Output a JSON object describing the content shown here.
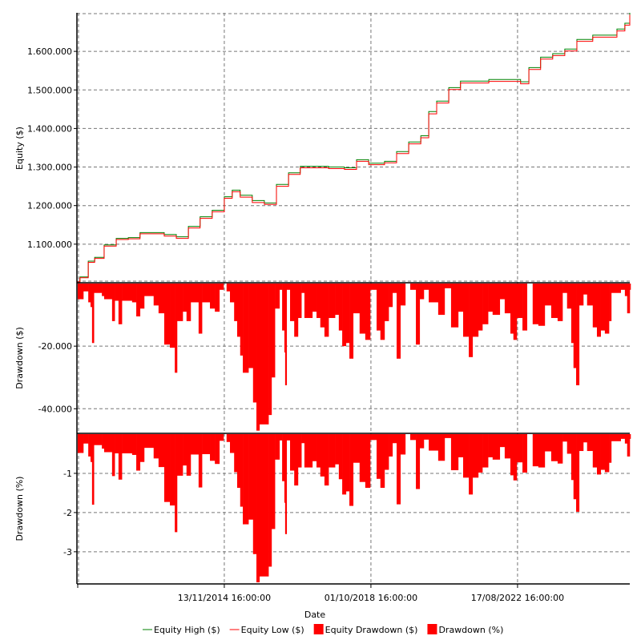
{
  "chart_data": [
    {
      "type": "line",
      "title": "",
      "ylabel": "Equity ($)",
      "xlabel": "Date",
      "ylim": [
        1002000,
        1700000
      ],
      "yticks": [
        1100000,
        1200000,
        1300000,
        1400000,
        1500000,
        1600000
      ],
      "ytick_labels": [
        "1.100.000",
        "1.200.000",
        "1.300.000",
        "1.400.000",
        "1.500.000",
        "1.600.000"
      ],
      "x_unit": "year",
      "series": [
        {
          "name": "Equity High ($)",
          "color": "#008000",
          "x": [
            2010.97,
            2011.05,
            2011.27,
            2011.44,
            2011.69,
            2012.01,
            2012.33,
            2012.64,
            2012.96,
            2013.28,
            2013.6,
            2013.92,
            2014.23,
            2014.55,
            2014.87,
            2015.08,
            2015.29,
            2015.61,
            2015.93,
            2016.25,
            2016.57,
            2016.88,
            2017.2,
            2017.63,
            2018.05,
            2018.37,
            2018.69,
            2019.11,
            2019.43,
            2019.75,
            2020.07,
            2020.28,
            2020.49,
            2020.81,
            2021.12,
            2021.44,
            2021.87,
            2022.29,
            2022.71,
            2022.93,
            2023.24,
            2023.56,
            2023.88,
            2024.2,
            2024.62,
            2025.05,
            2025.26,
            2025.47,
            2025.6
          ],
          "y": [
            1002000,
            1015000,
            1056000,
            1066000,
            1098000,
            1115000,
            1117000,
            1130000,
            1130000,
            1125000,
            1119000,
            1146000,
            1171000,
            1188000,
            1223000,
            1240000,
            1227000,
            1213000,
            1207000,
            1255000,
            1285000,
            1302000,
            1302000,
            1300000,
            1298000,
            1319000,
            1310000,
            1315000,
            1340000,
            1365000,
            1381000,
            1444000,
            1471000,
            1506000,
            1523000,
            1523000,
            1527000,
            1527000,
            1521000,
            1558000,
            1585000,
            1594000,
            1606000,
            1631000,
            1642000,
            1642000,
            1658000,
            1673000,
            1700000
          ]
        },
        {
          "name": "Equity Low ($)",
          "color": "#ff0000",
          "x": [
            2010.97,
            2011.05,
            2011.27,
            2011.44,
            2011.69,
            2012.01,
            2012.33,
            2012.64,
            2012.96,
            2013.28,
            2013.6,
            2013.92,
            2014.23,
            2014.55,
            2014.87,
            2015.08,
            2015.29,
            2015.61,
            2015.93,
            2016.25,
            2016.57,
            2016.88,
            2017.2,
            2017.63,
            2018.05,
            2018.37,
            2018.69,
            2019.11,
            2019.43,
            2019.75,
            2020.07,
            2020.28,
            2020.49,
            2020.81,
            2021.12,
            2021.44,
            2021.87,
            2022.29,
            2022.71,
            2022.93,
            2023.24,
            2023.56,
            2023.88,
            2024.2,
            2024.62,
            2025.05,
            2025.26,
            2025.47,
            2025.6
          ],
          "y": [
            1002000,
            1013000,
            1053000,
            1063000,
            1095000,
            1112000,
            1114000,
            1127000,
            1127000,
            1121000,
            1115000,
            1142000,
            1167000,
            1184000,
            1219000,
            1236000,
            1222000,
            1208000,
            1203000,
            1250000,
            1281000,
            1298000,
            1298000,
            1296000,
            1294000,
            1315000,
            1306000,
            1311000,
            1335000,
            1360000,
            1376000,
            1438000,
            1466000,
            1501000,
            1518000,
            1518000,
            1522000,
            1522000,
            1516000,
            1553000,
            1580000,
            1589000,
            1601000,
            1626000,
            1637000,
            1637000,
            1653000,
            1668000,
            1695000
          ]
        }
      ]
    },
    {
      "type": "bar",
      "ylabel": "Drawdown ($)",
      "ylim": [
        -47600,
        0
      ],
      "yticks": [
        -20000,
        -40000
      ],
      "ytick_labels": [
        "-20.000",
        "-40.000"
      ],
      "series": [
        {
          "name": "Equity Drawdown ($)",
          "color": "#ff0000"
        }
      ]
    },
    {
      "type": "bar",
      "ylabel": "Drawdown (%)",
      "ylim": [
        -3.8,
        0
      ],
      "yticks": [
        -1,
        -2,
        -3
      ],
      "ytick_labels": [
        "-1",
        "-2",
        "-3"
      ],
      "series": [
        {
          "name": "Drawdown (%)",
          "color": "#ff0000"
        }
      ]
    }
  ],
  "drawdown": {
    "x": [
      2010.99,
      2011.14,
      2011.27,
      2011.33,
      2011.37,
      2011.42,
      2011.63,
      2011.69,
      2011.9,
      2011.97,
      2012.07,
      2012.16,
      2012.43,
      2012.54,
      2012.64,
      2012.75,
      2013.0,
      2013.13,
      2013.28,
      2013.43,
      2013.56,
      2013.62,
      2013.77,
      2013.87,
      2013.98,
      2014.19,
      2014.28,
      2014.49,
      2014.62,
      2014.74,
      2014.85,
      2014.93,
      2015.02,
      2015.13,
      2015.21,
      2015.29,
      2015.36,
      2015.51,
      2015.63,
      2015.72,
      2015.8,
      2016.04,
      2016.12,
      2016.21,
      2016.33,
      2016.4,
      2016.46,
      2016.48,
      2016.52,
      2016.61,
      2016.72,
      2016.82,
      2016.91,
      2016.99,
      2017.2,
      2017.31,
      2017.41,
      2017.52,
      2017.63,
      2017.8,
      2017.9,
      2017.99,
      2018.09,
      2018.18,
      2018.28,
      2018.45,
      2018.6,
      2018.73,
      2018.9,
      2019.0,
      2019.11,
      2019.22,
      2019.32,
      2019.43,
      2019.53,
      2019.66,
      2019.79,
      2019.94,
      2020.04,
      2020.15,
      2020.28,
      2020.53,
      2020.7,
      2020.87,
      2021.06,
      2021.19,
      2021.34,
      2021.44,
      2021.59,
      2021.7,
      2021.85,
      2021.97,
      2022.16,
      2022.29,
      2022.44,
      2022.52,
      2022.61,
      2022.76,
      2022.88,
      2023.03,
      2023.18,
      2023.35,
      2023.52,
      2023.69,
      2023.82,
      2023.94,
      2024.05,
      2024.11,
      2024.18,
      2024.26,
      2024.37,
      2024.47,
      2024.62,
      2024.73,
      2024.83,
      2024.94,
      2025.05,
      2025.11,
      2025.36,
      2025.47,
      2025.53,
      2025.6
    ],
    "usd": [
      -5000,
      -2500,
      -6000,
      -7500,
      -19000,
      -3000,
      -4000,
      -5000,
      -12000,
      -5500,
      -13000,
      -5500,
      -6000,
      -10500,
      -8000,
      -4000,
      -7000,
      -9500,
      -19500,
      -20500,
      -28500,
      -12000,
      -9000,
      -12000,
      -6000,
      -16000,
      -6000,
      -8000,
      -9000,
      -2000,
      0,
      -2500,
      -6000,
      -12000,
      -17000,
      -23000,
      -28500,
      -27000,
      -38000,
      -47000,
      -45000,
      -42000,
      -30000,
      -8000,
      -2000,
      -15000,
      -22000,
      -32500,
      -2000,
      -12000,
      -17000,
      -11000,
      -3000,
      -11000,
      -9000,
      -11000,
      -14000,
      -17000,
      -11000,
      -10000,
      -15000,
      -20000,
      -19000,
      -24000,
      -9500,
      -16000,
      -18000,
      -2000,
      -15000,
      -18000,
      -12000,
      -7500,
      -3000,
      -24000,
      -7000,
      0,
      -2000,
      -19500,
      -5000,
      -2000,
      -6000,
      -10000,
      -1500,
      -14000,
      -9000,
      -17000,
      -23500,
      -17000,
      -15000,
      -13000,
      -9000,
      -10000,
      -5000,
      -9500,
      -16000,
      -18000,
      -11000,
      -15000,
      0,
      -13000,
      -13500,
      -7000,
      -11000,
      -12000,
      -3000,
      -8000,
      -19000,
      -27000,
      -32500,
      -7000,
      -3500,
      -7000,
      -14000,
      -17000,
      -15000,
      -16000,
      -12000,
      -3000,
      -2000,
      -4000,
      -9500,
      -2000
    ],
    "pct": [
      -0.48,
      -0.24,
      -0.57,
      -0.71,
      -1.8,
      -0.28,
      -0.37,
      -0.46,
      -1.07,
      -0.49,
      -1.16,
      -0.49,
      -0.53,
      -0.93,
      -0.71,
      -0.35,
      -0.62,
      -0.84,
      -1.73,
      -1.82,
      -2.5,
      -1.06,
      -0.8,
      -1.06,
      -0.52,
      -1.36,
      -0.51,
      -0.68,
      -0.76,
      -0.17,
      0,
      -0.2,
      -0.48,
      -0.97,
      -1.37,
      -1.85,
      -2.3,
      -2.18,
      -3.06,
      -3.78,
      -3.63,
      -3.38,
      -2.42,
      -0.65,
      -0.16,
      -1.2,
      -1.75,
      -2.55,
      -0.16,
      -0.93,
      -1.31,
      -0.85,
      -0.23,
      -0.85,
      -0.69,
      -0.85,
      -1.08,
      -1.31,
      -0.85,
      -0.77,
      -1.15,
      -1.54,
      -1.46,
      -1.83,
      -0.73,
      -1.22,
      -1.37,
      -0.15,
      -1.14,
      -1.37,
      -0.91,
      -0.57,
      -0.23,
      -1.79,
      -0.52,
      0,
      -0.15,
      -1.4,
      -0.36,
      -0.14,
      -0.42,
      -0.68,
      -0.1,
      -0.92,
      -0.59,
      -1.11,
      -1.54,
      -1.11,
      -0.98,
      -0.85,
      -0.59,
      -0.65,
      -0.33,
      -0.62,
      -1.05,
      -1.18,
      -0.72,
      -0.98,
      0,
      -0.82,
      -0.85,
      -0.44,
      -0.69,
      -0.75,
      -0.19,
      -0.5,
      -1.17,
      -1.66,
      -1.98,
      -0.43,
      -0.21,
      -0.43,
      -0.85,
      -1.03,
      -0.91,
      -0.97,
      -0.73,
      -0.18,
      -0.12,
      -0.24,
      -0.57,
      -0.12
    ]
  },
  "x_axis": {
    "label": "Date",
    "ticks": [
      {
        "year": 2014.87,
        "label": "13/11/2014 16:00:00"
      },
      {
        "year": 2018.75,
        "label": "01/10/2018 16:00:00"
      },
      {
        "year": 2022.63,
        "label": "17/08/2022 16:00:00"
      }
    ],
    "range": [
      2010.97,
      2025.6
    ]
  },
  "legend": [
    {
      "label": "Equity High ($)",
      "kind": "line",
      "color": "#008000"
    },
    {
      "label": "Equity Low ($)",
      "kind": "line",
      "color": "#ff0000"
    },
    {
      "label": "Equity Drawdown ($)",
      "kind": "box",
      "color": "#ff0000"
    },
    {
      "label": "Drawdown (%)",
      "kind": "box",
      "color": "#ff0000"
    }
  ]
}
